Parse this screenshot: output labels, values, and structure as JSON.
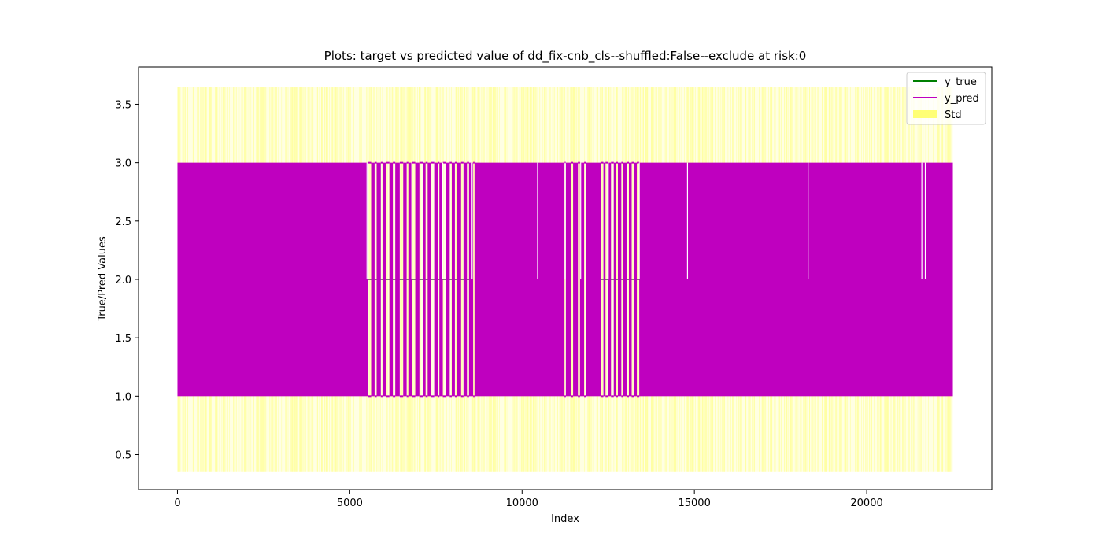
{
  "chart_data": {
    "type": "line",
    "title": "Plots: target vs predicted value of dd_fix-cnb_cls--shuffled:False--exclude at risk:0",
    "xlabel": "Index",
    "ylabel": "True/Pred Values",
    "xlim": [
      -1130,
      23630
    ],
    "ylim": [
      0.2,
      3.82
    ],
    "xticks": [
      0,
      5000,
      10000,
      15000,
      20000
    ],
    "xtick_labels": [
      "0",
      "5000",
      "10000",
      "15000",
      "20000"
    ],
    "yticks": [
      0.5,
      1.0,
      1.5,
      2.0,
      2.5,
      3.0,
      3.5
    ],
    "ytick_labels": [
      "0.5",
      "1.0",
      "1.5",
      "2.0",
      "2.5",
      "3.0",
      "3.5"
    ],
    "grid": false,
    "legend_position": "top-right",
    "n_points": 22500,
    "series": [
      {
        "name": "y_true",
        "kind": "line",
        "color": "#008000",
        "description_values": "categorical levels 1, 2, 3",
        "segments": [
          {
            "x_start": 0,
            "x_end": 5500,
            "levels": [
              1,
              3
            ]
          },
          {
            "x_start": 5500,
            "x_end": 8500,
            "levels": [
              1,
              2,
              3
            ]
          },
          {
            "x_start": 8500,
            "x_end": 12200,
            "levels": [
              1,
              3
            ]
          },
          {
            "x_start": 12200,
            "x_end": 13500,
            "levels": [
              1,
              2,
              3
            ]
          },
          {
            "x_start": 13500,
            "x_end": 22500,
            "levels": [
              1,
              3
            ]
          }
        ]
      },
      {
        "name": "y_pred",
        "kind": "line",
        "color": "#bf00bf",
        "value_range": [
          1.0,
          3.0
        ],
        "white_gaps": [
          [
            5520,
            5620
          ],
          [
            5720,
            5780
          ],
          [
            5900,
            5950
          ],
          [
            6050,
            6150
          ],
          [
            6250,
            6320
          ],
          [
            6450,
            6550
          ],
          [
            6650,
            6700
          ],
          [
            6800,
            6900
          ],
          [
            7020,
            7120
          ],
          [
            7200,
            7260
          ],
          [
            7350,
            7450
          ],
          [
            7550,
            7600
          ],
          [
            7700,
            7780
          ],
          [
            7900,
            7960
          ],
          [
            8050,
            8100
          ],
          [
            8230,
            8300
          ],
          [
            8400,
            8460
          ],
          [
            8580,
            8620
          ],
          [
            11230,
            11270
          ],
          [
            11420,
            11480
          ],
          [
            11620,
            11680
          ],
          [
            11800,
            11860
          ],
          [
            12280,
            12360
          ],
          [
            12420,
            12500
          ],
          [
            12580,
            12660
          ],
          [
            12720,
            12780
          ],
          [
            12880,
            12940
          ],
          [
            13040,
            13100
          ],
          [
            13180,
            13240
          ],
          [
            13330,
            13400
          ]
        ],
        "level2_spikes": [
          5500,
          6800,
          7700,
          8550,
          10450,
          11250,
          11700,
          12500,
          13400,
          14800,
          18300,
          21600,
          21700
        ]
      },
      {
        "name": "Std",
        "kind": "band",
        "color": "#ffff66",
        "range": [
          0.35,
          3.65
        ]
      }
    ]
  }
}
